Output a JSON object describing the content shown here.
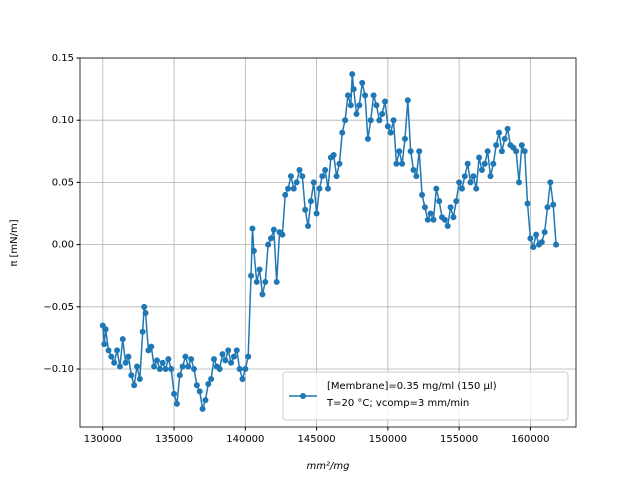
{
  "chart_data": {
    "type": "line",
    "xlabel": "mm²/mg",
    "ylabel": "π [mN/m]",
    "xlim": [
      128400,
      163200
    ],
    "ylim": [
      -0.1466,
      0.15
    ],
    "xticks": [
      130000,
      135000,
      140000,
      145000,
      150000,
      155000,
      160000
    ],
    "yticks": [
      {
        "value": -0.1,
        "label": "−0.10"
      },
      {
        "value": -0.05,
        "label": "−0.05"
      },
      {
        "value": 0,
        "label": "0.00"
      },
      {
        "value": 0.05,
        "label": "0.05"
      },
      {
        "value": 0.1,
        "label": "0.10"
      },
      {
        "value": 0.15,
        "label": "0.15"
      }
    ],
    "grid": true,
    "legend": "lower right",
    "series": [
      {
        "name": "[Membrane]=0.35 mg/ml (150 μl)\nT=20 °C; vcomp=3 mm/min",
        "color": "#1f77b4",
        "x": [
          130000,
          130100,
          130200,
          130400,
          130600,
          130800,
          131000,
          131200,
          131400,
          131600,
          131800,
          132000,
          132200,
          132400,
          132600,
          132800,
          132900,
          133000,
          133200,
          133400,
          133600,
          133800,
          134000,
          134200,
          134400,
          134600,
          134800,
          135000,
          135200,
          135400,
          135600,
          135800,
          136000,
          136200,
          136400,
          136600,
          136800,
          137000,
          137200,
          137400,
          137600,
          137800,
          138000,
          138200,
          138400,
          138600,
          138800,
          139000,
          139200,
          139400,
          139600,
          139800,
          140000,
          140200,
          140400,
          140500,
          140600,
          140800,
          141000,
          141200,
          141400,
          141600,
          141800,
          142000,
          142200,
          142400,
          142600,
          142800,
          143000,
          143200,
          143400,
          143600,
          143800,
          144000,
          144200,
          144400,
          144600,
          144800,
          145000,
          145200,
          145400,
          145600,
          145800,
          146000,
          146200,
          146400,
          146600,
          146800,
          147000,
          147200,
          147400,
          147500,
          147600,
          147800,
          148000,
          148200,
          148400,
          148600,
          148800,
          149000,
          149200,
          149400,
          149600,
          149800,
          150000,
          150200,
          150400,
          150600,
          150800,
          151000,
          151200,
          151400,
          151600,
          151800,
          152000,
          152200,
          152400,
          152600,
          152800,
          153000,
          153200,
          153400,
          153600,
          153800,
          154000,
          154200,
          154400,
          154600,
          154800,
          155000,
          155200,
          155400,
          155600,
          155800,
          156000,
          156200,
          156400,
          156600,
          156800,
          157000,
          157200,
          157400,
          157600,
          157800,
          158000,
          158200,
          158400,
          158600,
          158800,
          159000,
          159200,
          159400,
          159600,
          159800,
          160000,
          160200,
          160400,
          160600,
          160800,
          161000,
          161200,
          161400,
          161600,
          161800
        ],
        "values": [
          -0.065,
          -0.08,
          -0.068,
          -0.085,
          -0.09,
          -0.095,
          -0.085,
          -0.098,
          -0.076,
          -0.095,
          -0.09,
          -0.105,
          -0.113,
          -0.098,
          -0.108,
          -0.07,
          -0.05,
          -0.055,
          -0.085,
          -0.082,
          -0.098,
          -0.093,
          -0.1,
          -0.095,
          -0.1,
          -0.092,
          -0.1,
          -0.12,
          -0.128,
          -0.105,
          -0.098,
          -0.09,
          -0.098,
          -0.092,
          -0.1,
          -0.113,
          -0.118,
          -0.132,
          -0.125,
          -0.112,
          -0.108,
          -0.092,
          -0.098,
          -0.1,
          -0.088,
          -0.093,
          -0.085,
          -0.095,
          -0.09,
          -0.085,
          -0.1,
          -0.108,
          -0.1,
          -0.09,
          -0.025,
          0.013,
          -0.005,
          -0.03,
          -0.02,
          -0.04,
          -0.03,
          0.0,
          0.005,
          0.012,
          -0.03,
          0.01,
          0.008,
          0.04,
          0.045,
          0.055,
          0.045,
          0.05,
          0.06,
          0.055,
          0.028,
          0.015,
          0.035,
          0.05,
          0.025,
          0.045,
          0.055,
          0.06,
          0.045,
          0.07,
          0.072,
          0.055,
          0.065,
          0.09,
          0.1,
          0.12,
          0.112,
          0.137,
          0.125,
          0.105,
          0.112,
          0.13,
          0.12,
          0.085,
          0.1,
          0.12,
          0.112,
          0.1,
          0.105,
          0.115,
          0.095,
          0.09,
          0.1,
          0.065,
          0.075,
          0.065,
          0.085,
          0.116,
          0.075,
          0.06,
          0.055,
          0.075,
          0.04,
          0.03,
          0.02,
          0.025,
          0.02,
          0.045,
          0.035,
          0.022,
          0.02,
          0.015,
          0.03,
          0.022,
          0.035,
          0.05,
          0.045,
          0.055,
          0.065,
          0.05,
          0.055,
          0.045,
          0.07,
          0.06,
          0.065,
          0.075,
          0.055,
          0.065,
          0.08,
          0.09,
          0.075,
          0.085,
          0.093,
          0.08,
          0.078,
          0.075,
          0.05,
          0.08,
          0.075,
          0.033,
          0.005,
          -0.002,
          0.008,
          0.0,
          0.002,
          0.01,
          0.03,
          0.05,
          0.032,
          0.0
        ]
      }
    ]
  }
}
